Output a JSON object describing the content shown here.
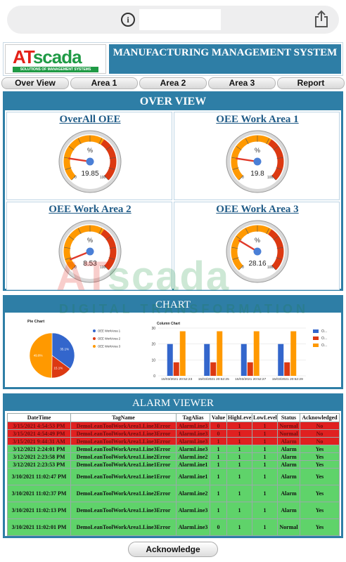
{
  "browser": {
    "share_icon": "share-icon",
    "info_icon": "info-icon",
    "info_glyph": "i"
  },
  "header": {
    "logo_a": "AT",
    "logo_s": "scada",
    "logo_tagline": "SOLUTIONS OF MANAGEMENT SYSTEMS",
    "title": "MANUFACTURING MANAGEMENT SYSTEM"
  },
  "nav": [
    "Over View",
    "Area 1",
    "Area 2",
    "Area 3",
    "Report"
  ],
  "overview": {
    "title": "OVER VIEW",
    "gauges": [
      {
        "title": "OverAll OEE",
        "value": 19.85,
        "unit": "%",
        "min": "0",
        "max": "100"
      },
      {
        "title": "OEE Work Area 1",
        "value": 19.8,
        "unit": "%",
        "min": "0",
        "max": "100"
      },
      {
        "title": "OEE Work Area 2",
        "value": 8.53,
        "unit": "%",
        "min": "0",
        "max": "100"
      },
      {
        "title": "OEE Work Area 3",
        "value": 28.16,
        "unit": "%",
        "min": "0",
        "max": "100"
      }
    ]
  },
  "chart_section": {
    "title": "CHART"
  },
  "chart_data": [
    {
      "type": "pie",
      "title": "Pie Chart",
      "slices": [
        {
          "name": "OEE WorkArea 1",
          "value": 35.1,
          "color": "#3366cc"
        },
        {
          "name": "OEE WorkArea 2",
          "value": 15.1,
          "color": "#dc3912"
        },
        {
          "name": "OEE WorkArea 3",
          "value": 49.8,
          "color": "#ff9900"
        }
      ],
      "labels": [
        "35.1%",
        "15.1%",
        "49.8%"
      ]
    },
    {
      "type": "bar",
      "title": "Column Chart",
      "categories": [
        "15/03/2021 20:52:23",
        "15/03/2021 20:52:25",
        "15/03/2021 20:52:27",
        "15/03/2021 20:52:29"
      ],
      "series": [
        {
          "name": "O...",
          "color": "#3366cc",
          "values": [
            20,
            20,
            20,
            20
          ]
        },
        {
          "name": "O...",
          "color": "#dc3912",
          "values": [
            8.5,
            8.5,
            8.5,
            8.5
          ]
        },
        {
          "name": "O...",
          "color": "#ff9900",
          "values": [
            28,
            28,
            28,
            28
          ]
        }
      ],
      "ylim": [
        0,
        30
      ],
      "yticks": [
        "0",
        "10",
        "20",
        "30"
      ],
      "legend": "right"
    }
  ],
  "alarm": {
    "title": "ALARM VIEWER",
    "columns": [
      "DateTime",
      "TagName",
      "TagAlias",
      "Value",
      "HighLevel",
      "LowLevel",
      "Status",
      "Acknowledged"
    ],
    "rows": [
      {
        "color": "red",
        "cells": [
          "3/15/2021 4:54:53 PM",
          "DemoLeanToolWorkArea1.Line3Error",
          "AlarmLine3",
          "0",
          "1",
          "1",
          "Normal",
          "No"
        ]
      },
      {
        "color": "red",
        "cells": [
          "3/15/2021 4:54:49 PM",
          "DemoLeanToolWorkArea1.Line3Error",
          "AlarmLine3",
          "0",
          "1",
          "1",
          "Normal",
          "No"
        ]
      },
      {
        "color": "red",
        "cells": [
          "3/15/2021 9:44:31 AM",
          "DemoLeanToolWorkArea1.Line3Error",
          "AlarmLine3",
          "1",
          "1",
          "1",
          "Alarm",
          "No"
        ]
      },
      {
        "color": "green",
        "cells": [
          "3/12/2021 2:24:01 PM",
          "DemoLeanToolWorkArea1.Line3Error",
          "AlarmLine3",
          "1",
          "1",
          "1",
          "Alarm",
          "Yes"
        ]
      },
      {
        "color": "green",
        "cells": [
          "3/12/2021 2:23:58 PM",
          "DemoLeanToolWorkArea1.Line2Error",
          "AlarmLine2",
          "1",
          "1",
          "1",
          "Alarm",
          "Yes"
        ]
      },
      {
        "color": "green",
        "cells": [
          "3/12/2021 2:23:53 PM",
          "DemoLeanToolWorkArea1.Line1Error",
          "AlarmLine1",
          "1",
          "1",
          "1",
          "Alarm",
          "Yes"
        ]
      },
      {
        "color": "green-tall",
        "cells": [
          "3/10/2021 11:02:47 PM",
          "DemoLeanToolWorkArea1.Line1Error",
          "AlarmLine1",
          "1",
          "1",
          "1",
          "Alarm",
          "Yes"
        ]
      },
      {
        "color": "green-tall",
        "cells": [
          "3/10/2021 11:02:37 PM",
          "DemoLeanToolWorkArea1.Line2Error",
          "AlarmLine2",
          "1",
          "1",
          "1",
          "Alarm",
          "Yes"
        ]
      },
      {
        "color": "green-tall",
        "cells": [
          "3/10/2021 11:02:13 PM",
          "DemoLeanToolWorkArea1.Line3Error",
          "AlarmLine3",
          "1",
          "1",
          "1",
          "Alarm",
          "Yes"
        ]
      },
      {
        "color": "green-tall",
        "cells": [
          "3/10/2021 11:02:01 PM",
          "DemoLeanToolWorkArea1.Line3Error",
          "AlarmLine3",
          "0",
          "1",
          "1",
          "Normal",
          "Yes"
        ]
      }
    ],
    "ack_button": "Acknowledge"
  },
  "watermark": {
    "big_a": "AT",
    "big_s": "scada",
    "small": "DIGITAL TRANSFORMATION"
  }
}
